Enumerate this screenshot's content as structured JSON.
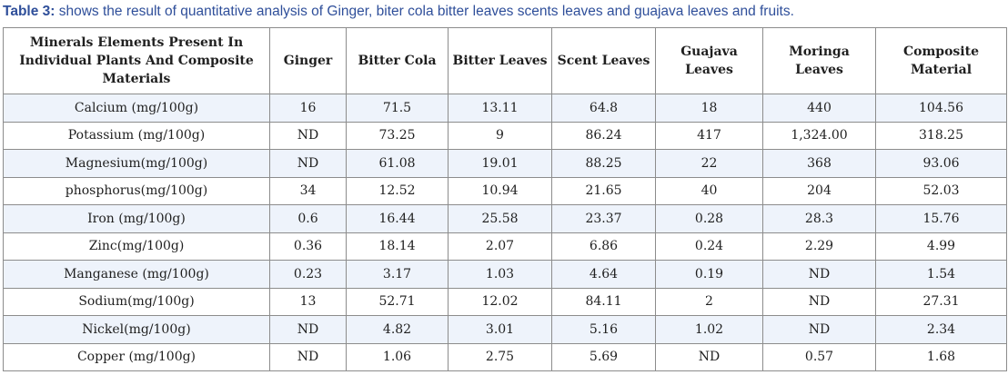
{
  "caption": {
    "label": "Table 3:",
    "text": " shows the result of quantitative analysis of Ginger, biter cola bitter leaves scents leaves and guajava leaves and fruits."
  },
  "table": {
    "headers": [
      "Minerals Elements Present In Individual Plants And Composite Materials",
      "Ginger",
      "Bitter Cola",
      "Bitter Leaves",
      "Scent Leaves",
      "Guajava Leaves",
      "Moringa Leaves",
      "Composite Material"
    ],
    "rows": [
      [
        "Calcium (mg/100g)",
        "16",
        "71.5",
        "13.11",
        "64.8",
        "18",
        "440",
        "104.56"
      ],
      [
        "Potassium (mg/100g)",
        "ND",
        "73.25",
        "9",
        "86.24",
        "417",
        "1,324.00",
        "318.25"
      ],
      [
        "Magnesium(mg/100g)",
        "ND",
        "61.08",
        "19.01",
        "88.25",
        "22",
        "368",
        "93.06"
      ],
      [
        "phosphorus(mg/100g)",
        "34",
        "12.52",
        "10.94",
        "21.65",
        "40",
        "204",
        "52.03"
      ],
      [
        "Iron (mg/100g)",
        "0.6",
        "16.44",
        "25.58",
        "23.37",
        "0.28",
        "28.3",
        "15.76"
      ],
      [
        "Zinc(mg/100g)",
        "0.36",
        "18.14",
        "2.07",
        "6.86",
        "0.24",
        "2.29",
        "4.99"
      ],
      [
        "Manganese (mg/100g)",
        "0.23",
        "3.17",
        "1.03",
        "4.64",
        "0.19",
        "ND",
        "1.54"
      ],
      [
        "Sodium(mg/100g)",
        "13",
        "52.71",
        "12.02",
        "84.11",
        "2",
        "ND",
        "27.31"
      ],
      [
        "Nickel(mg/100g)",
        "ND",
        "4.82",
        "3.01",
        "5.16",
        "1.02",
        "ND",
        "2.34"
      ],
      [
        "Copper (mg/100g)",
        "ND",
        "1.06",
        "2.75",
        "5.69",
        "ND",
        "0.57",
        "1.68"
      ]
    ]
  }
}
